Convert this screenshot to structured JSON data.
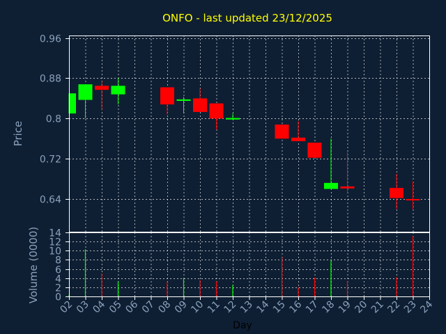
{
  "title": "ONFO - last updated 23/12/2025",
  "colors": {
    "background": "#0f1f33",
    "title": "#ffff00",
    "axis_text": "#8aa2bc",
    "up": "#00ff00",
    "down": "#ff0000",
    "frame": "#ffffff"
  },
  "chart_data": [
    {
      "type": "candlestick",
      "ylabel": "Price",
      "ylim": [
        0.575,
        0.965
      ],
      "yticks": [
        0.64,
        0.72,
        0.8,
        0.88,
        0.96
      ],
      "ytick_labels": [
        "0.64",
        "0.72",
        "0.8",
        "0.88",
        "0.96"
      ],
      "grid": true,
      "xlim": [
        2,
        24
      ],
      "candles": [
        {
          "day": 2,
          "open": 0.81,
          "close": 0.85,
          "high": 0.85,
          "low": 0.81
        },
        {
          "day": 3,
          "open": 0.837,
          "close": 0.868,
          "high": 0.868,
          "low": 0.8
        },
        {
          "day": 4,
          "open": 0.865,
          "close": 0.857,
          "high": 0.875,
          "low": 0.817
        },
        {
          "day": 5,
          "open": 0.848,
          "close": 0.865,
          "high": 0.88,
          "low": 0.828
        },
        {
          "day": 8,
          "open": 0.862,
          "close": 0.828,
          "high": 0.862,
          "low": 0.808
        },
        {
          "day": 9,
          "open": 0.835,
          "close": 0.838,
          "high": 0.843,
          "low": 0.81
        },
        {
          "day": 10,
          "open": 0.84,
          "close": 0.813,
          "high": 0.86,
          "low": 0.813
        },
        {
          "day": 11,
          "open": 0.83,
          "close": 0.8,
          "high": 0.83,
          "low": 0.778
        },
        {
          "day": 12,
          "open": 0.798,
          "close": 0.801,
          "high": 0.81,
          "low": 0.797
        },
        {
          "day": 15,
          "open": 0.788,
          "close": 0.76,
          "high": 0.788,
          "low": 0.76
        },
        {
          "day": 16,
          "open": 0.762,
          "close": 0.755,
          "high": 0.795,
          "low": 0.755
        },
        {
          "day": 17,
          "open": 0.752,
          "close": 0.722,
          "high": 0.752,
          "low": 0.722
        },
        {
          "day": 18,
          "open": 0.66,
          "close": 0.672,
          "high": 0.76,
          "low": 0.66
        },
        {
          "day": 19,
          "open": 0.665,
          "close": 0.661,
          "high": 0.733,
          "low": 0.652
        },
        {
          "day": 22,
          "open": 0.662,
          "close": 0.642,
          "high": 0.69,
          "low": 0.62
        },
        {
          "day": 23,
          "open": 0.64,
          "close": 0.638,
          "high": 0.675,
          "low": 0.62
        }
      ]
    },
    {
      "type": "bar",
      "ylabel": "Volume (0000)",
      "xlabel": "Day",
      "ylim": [
        0,
        14
      ],
      "yticks": [
        0,
        2,
        4,
        6,
        8,
        10,
        12,
        14
      ],
      "ytick_labels": [
        "0",
        "2",
        "4",
        "6",
        "8",
        "10",
        "12",
        "14"
      ],
      "grid": true,
      "xlim": [
        2,
        24
      ],
      "xticks": [
        2,
        3,
        4,
        5,
        6,
        7,
        8,
        9,
        10,
        11,
        12,
        13,
        14,
        15,
        16,
        17,
        18,
        19,
        20,
        21,
        22,
        23,
        24
      ],
      "xtick_labels": [
        "02",
        "03",
        "04",
        "05",
        "06",
        "07",
        "08",
        "09",
        "10",
        "11",
        "12",
        "13",
        "14",
        "15",
        "16",
        "17",
        "18",
        "19",
        "20",
        "21",
        "22",
        "23",
        "24"
      ],
      "volumes": [
        {
          "day": 2,
          "value": 0.3,
          "direction": "up"
        },
        {
          "day": 3,
          "value": 10.3,
          "direction": "up"
        },
        {
          "day": 4,
          "value": 5.0,
          "direction": "down"
        },
        {
          "day": 5,
          "value": 3.3,
          "direction": "up"
        },
        {
          "day": 8,
          "value": 3.2,
          "direction": "down"
        },
        {
          "day": 9,
          "value": 4.0,
          "direction": "up"
        },
        {
          "day": 10,
          "value": 3.6,
          "direction": "down"
        },
        {
          "day": 11,
          "value": 3.3,
          "direction": "down"
        },
        {
          "day": 12,
          "value": 2.5,
          "direction": "up"
        },
        {
          "day": 15,
          "value": 8.6,
          "direction": "down"
        },
        {
          "day": 16,
          "value": 2.0,
          "direction": "down"
        },
        {
          "day": 17,
          "value": 4.1,
          "direction": "down"
        },
        {
          "day": 18,
          "value": 7.8,
          "direction": "up"
        },
        {
          "day": 19,
          "value": 3.4,
          "direction": "down"
        },
        {
          "day": 22,
          "value": 4.2,
          "direction": "down"
        },
        {
          "day": 23,
          "value": 13.2,
          "direction": "down"
        }
      ]
    }
  ]
}
